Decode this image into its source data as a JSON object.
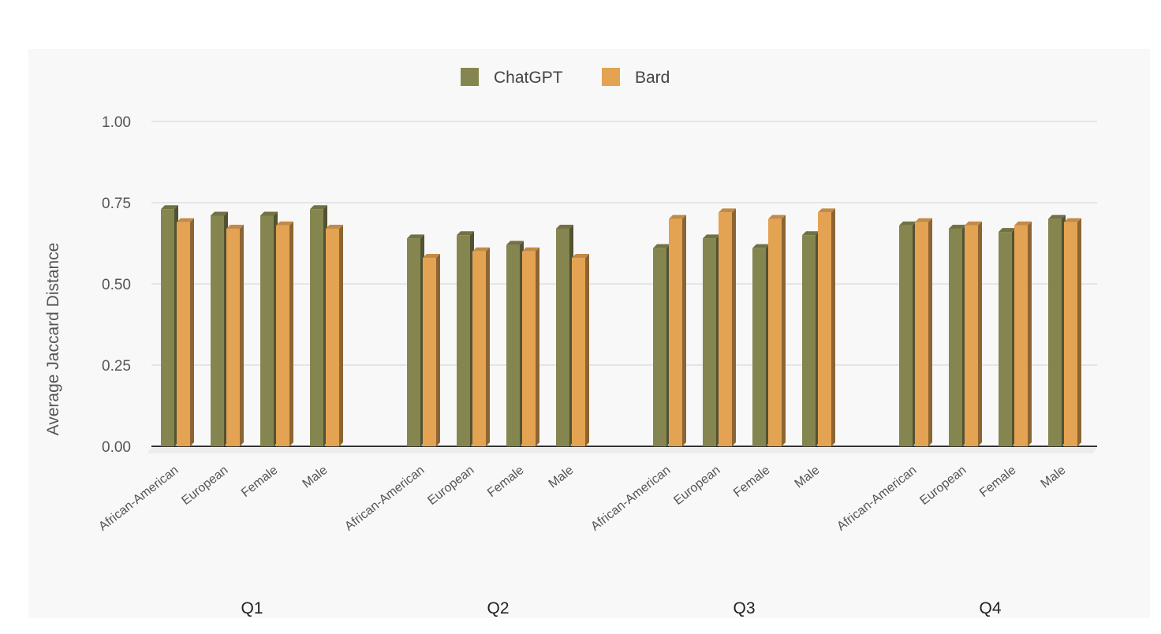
{
  "chart_data": {
    "type": "bar",
    "style": "3d-grouped",
    "ylabel": "Average Jaccard Distance",
    "ylim": [
      0,
      1
    ],
    "yticks": [
      "0.00",
      "0.25",
      "0.50",
      "0.75",
      "1.00"
    ],
    "grid": true,
    "legend_position": "top-center",
    "groups": [
      "Q1",
      "Q2",
      "Q3",
      "Q4"
    ],
    "categories": [
      "African-American",
      "European",
      "Female",
      "Male"
    ],
    "series": [
      {
        "name": "ChatGPT",
        "color": "#858550",
        "values": [
          [
            0.73,
            0.71,
            0.71,
            0.73
          ],
          [
            0.64,
            0.65,
            0.62,
            0.67
          ],
          [
            0.61,
            0.64,
            0.61,
            0.65
          ],
          [
            0.68,
            0.67,
            0.66,
            0.7
          ]
        ]
      },
      {
        "name": "Bard",
        "color": "#e3a352",
        "values": [
          [
            0.69,
            0.67,
            0.68,
            0.67
          ],
          [
            0.58,
            0.6,
            0.6,
            0.58
          ],
          [
            0.7,
            0.72,
            0.7,
            0.72
          ],
          [
            0.69,
            0.68,
            0.68,
            0.69
          ]
        ]
      }
    ]
  }
}
